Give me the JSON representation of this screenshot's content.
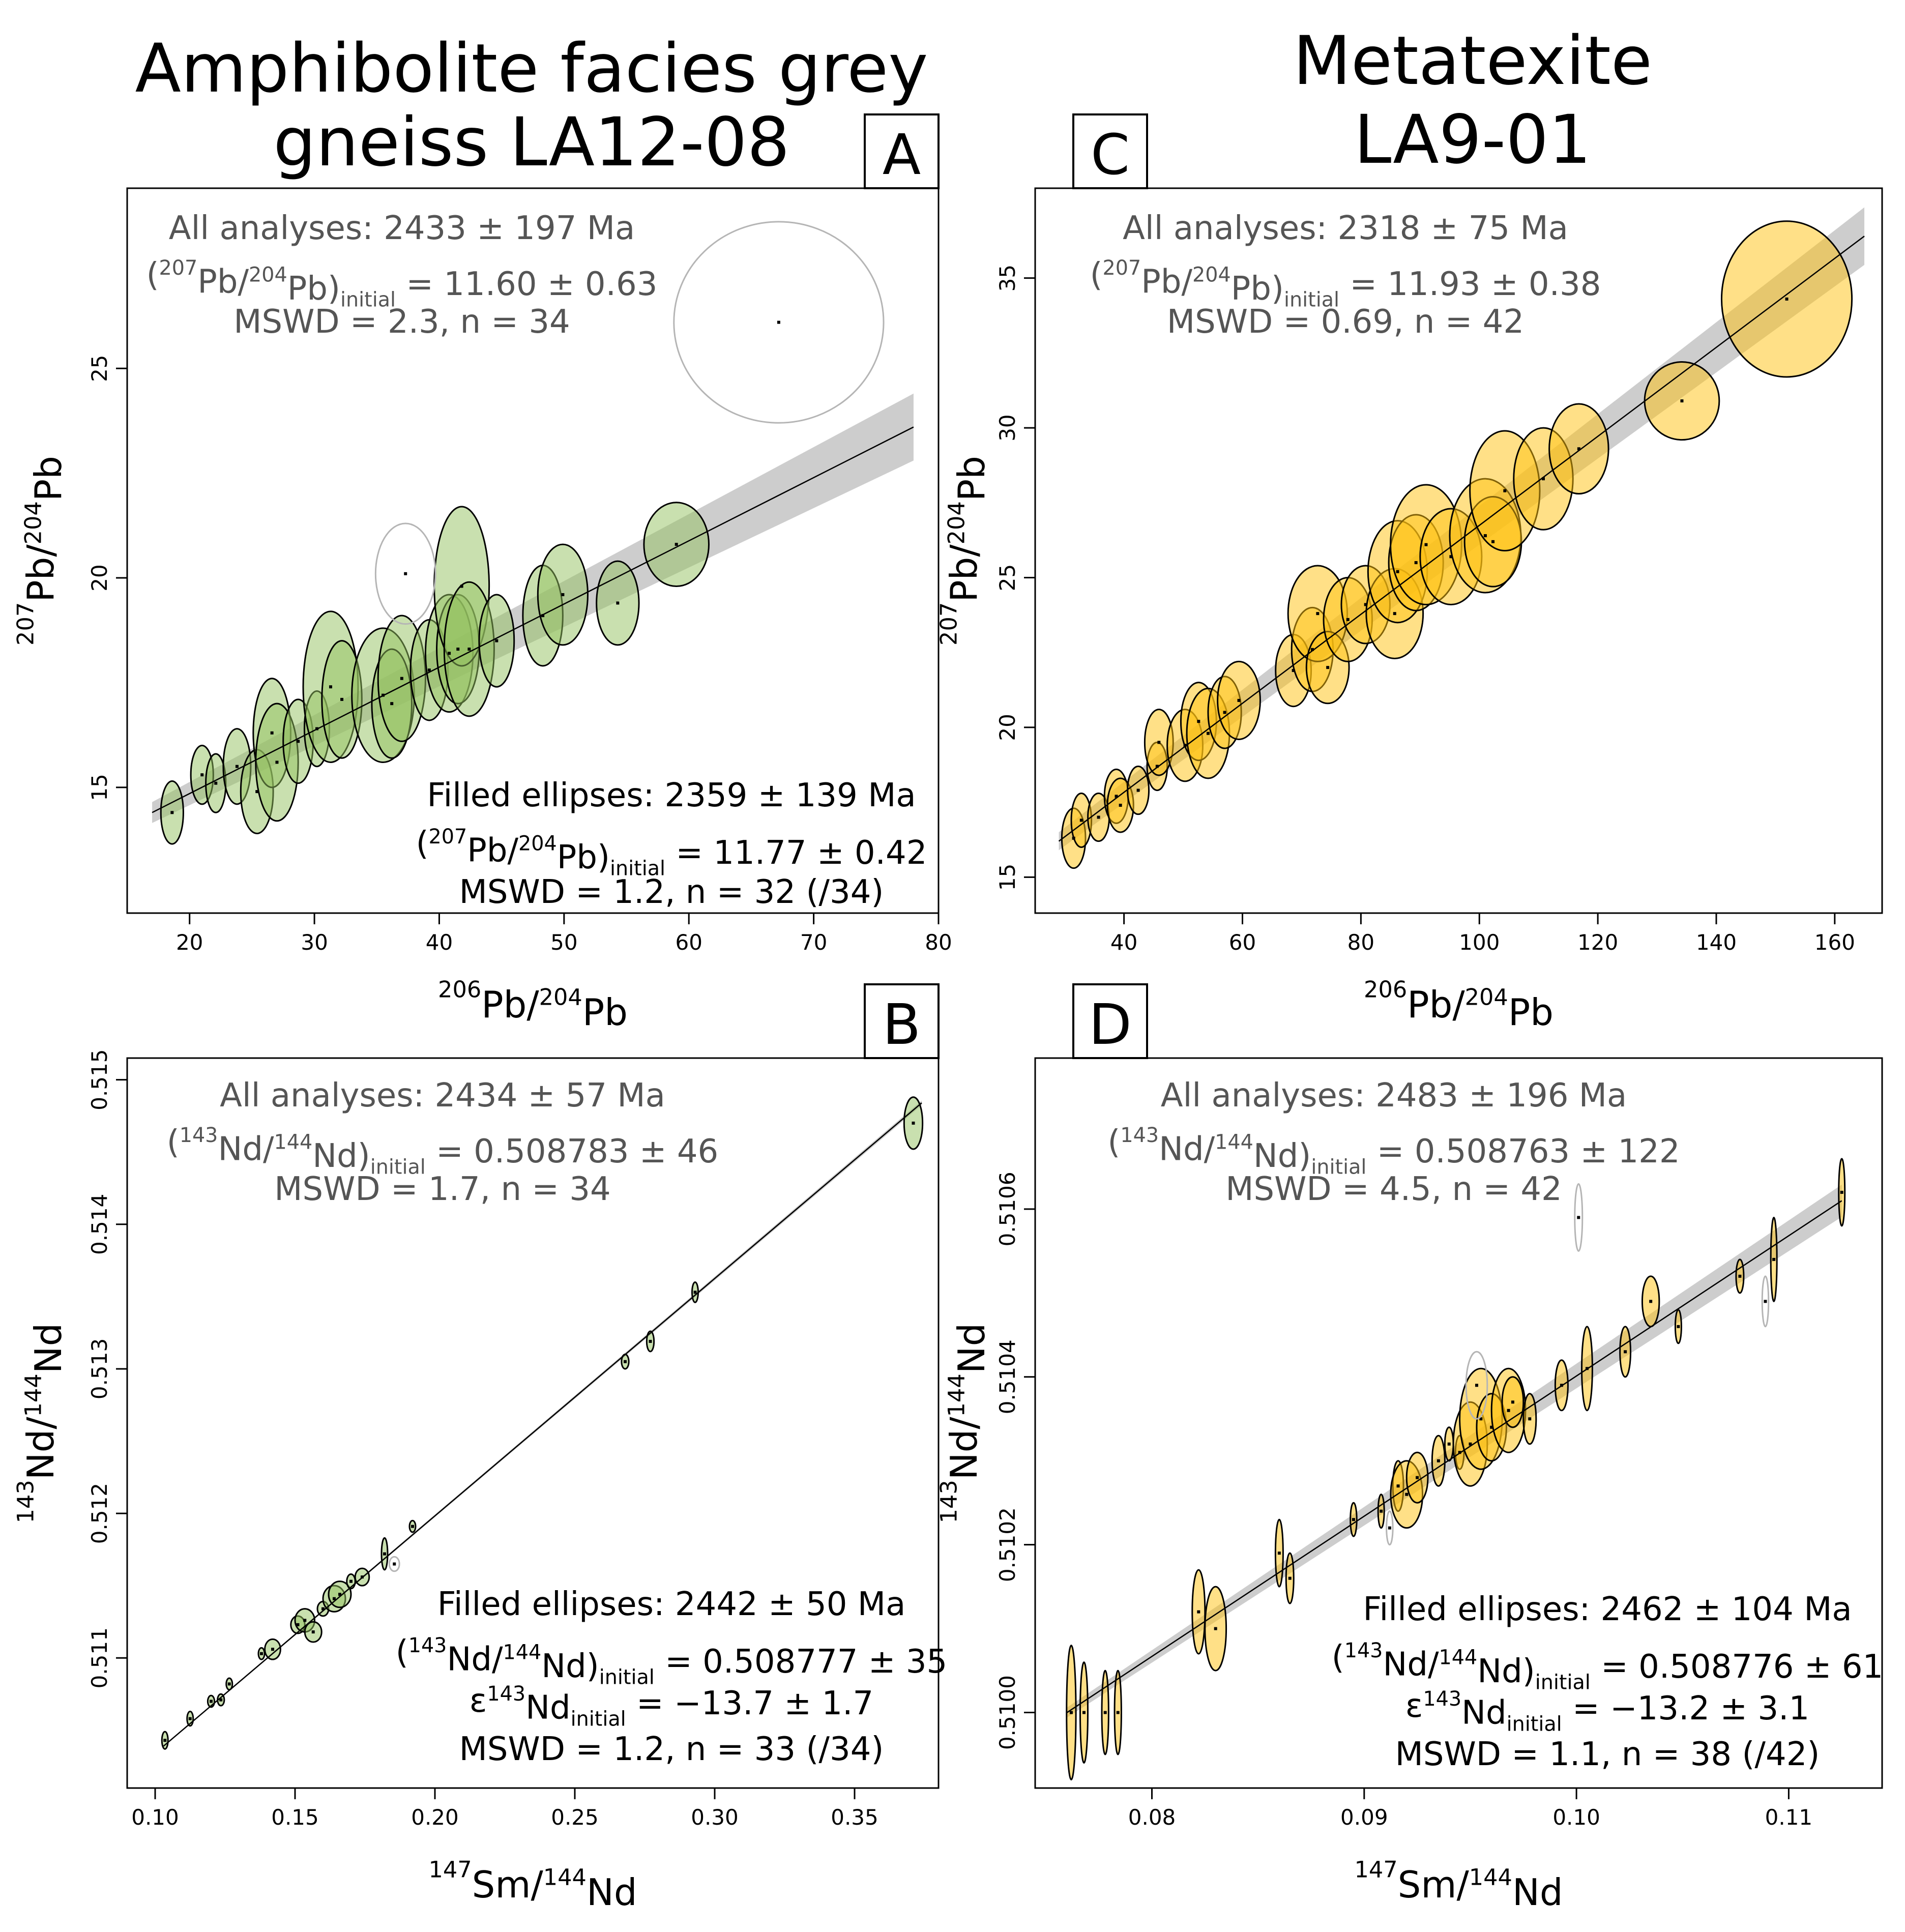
{
  "figure": {
    "titles": {
      "left": [
        "Amphibolite facies grey",
        "gneiss LA12-08"
      ],
      "right": [
        "Metatexite",
        "LA9-01"
      ]
    }
  },
  "chart_data": [
    {
      "id": "A",
      "type": "scatter",
      "letter": "A",
      "xlabel": "206Pb/204Pb",
      "ylabel": "207Pb/204Pb",
      "xlim": [
        15,
        80
      ],
      "ylim": [
        12.0,
        29.3
      ],
      "xticks": [
        20,
        30,
        40,
        50,
        60,
        70,
        80
      ],
      "yticks": [
        15,
        20,
        25
      ],
      "fill_color": "#93c15f",
      "fill_opacity": 0.5,
      "line": {
        "x0": 17,
        "y0": 14.4,
        "x1": 78,
        "y1": 23.6,
        "band": 0.5
      },
      "points": [
        {
          "x": 18.6,
          "y": 14.4,
          "rx": 0.9,
          "ry": 0.75
        },
        {
          "x": 21.0,
          "y": 15.3,
          "rx": 0.9,
          "ry": 0.7
        },
        {
          "x": 22.1,
          "y": 15.1,
          "rx": 0.8,
          "ry": 0.7
        },
        {
          "x": 23.8,
          "y": 15.5,
          "rx": 1.1,
          "ry": 0.9
        },
        {
          "x": 25.4,
          "y": 14.9,
          "rx": 1.3,
          "ry": 1.0
        },
        {
          "x": 26.6,
          "y": 16.3,
          "rx": 1.5,
          "ry": 1.3
        },
        {
          "x": 27.0,
          "y": 15.6,
          "rx": 1.7,
          "ry": 1.4
        },
        {
          "x": 28.7,
          "y": 16.1,
          "rx": 1.2,
          "ry": 1.0
        },
        {
          "x": 30.2,
          "y": 16.4,
          "rx": 1.0,
          "ry": 0.9
        },
        {
          "x": 31.3,
          "y": 17.4,
          "rx": 2.2,
          "ry": 1.8
        },
        {
          "x": 32.2,
          "y": 17.1,
          "rx": 1.6,
          "ry": 1.4
        },
        {
          "x": 35.5,
          "y": 17.2,
          "rx": 2.5,
          "ry": 1.6
        },
        {
          "x": 36.2,
          "y": 17.0,
          "rx": 1.6,
          "ry": 1.3
        },
        {
          "x": 37.0,
          "y": 17.6,
          "rx": 1.9,
          "ry": 1.5
        },
        {
          "x": 39.2,
          "y": 17.8,
          "rx": 1.5,
          "ry": 1.2
        },
        {
          "x": 40.8,
          "y": 18.2,
          "rx": 1.9,
          "ry": 1.4
        },
        {
          "x": 41.5,
          "y": 18.3,
          "rx": 1.7,
          "ry": 1.3
        },
        {
          "x": 41.8,
          "y": 19.8,
          "rx": 2.2,
          "ry": 1.9
        },
        {
          "x": 42.4,
          "y": 18.3,
          "rx": 2.0,
          "ry": 1.6
        },
        {
          "x": 44.6,
          "y": 18.5,
          "rx": 1.4,
          "ry": 1.1
        },
        {
          "x": 48.3,
          "y": 19.1,
          "rx": 1.6,
          "ry": 1.2
        },
        {
          "x": 49.9,
          "y": 19.6,
          "rx": 2.0,
          "ry": 1.2
        },
        {
          "x": 54.3,
          "y": 19.4,
          "rx": 1.7,
          "ry": 1.0
        },
        {
          "x": 59.0,
          "y": 20.8,
          "rx": 2.6,
          "ry": 1.0
        }
      ],
      "rejected": [
        {
          "x": 37.3,
          "y": 20.1,
          "rx": 2.4,
          "ry": 1.2
        },
        {
          "x": 67.2,
          "y": 26.1,
          "rx": 8.4,
          "ry": 2.4
        }
      ],
      "ann_all": [
        "All analyses: 2433 ± 197 Ma",
        "(207Pb/204Pb)initial = 11.60 ± 0.63",
        "MSWD = 2.3, n = 34"
      ],
      "ann_filled": [
        "Filled ellipses: 2359 ± 139 Ma",
        "(207Pb/204Pb)initial = 11.77 ± 0.42",
        "MSWD = 1.2, n = 32 (/34)"
      ]
    },
    {
      "id": "C",
      "type": "scatter",
      "letter": "C",
      "xlabel": "206Pb/204Pb",
      "ylabel": "207Pb/204Pb",
      "xlim": [
        25,
        168
      ],
      "ylim": [
        13.8,
        38.0
      ],
      "xticks": [
        40,
        60,
        80,
        100,
        120,
        140,
        160
      ],
      "yticks": [
        15,
        20,
        25,
        30,
        35
      ],
      "fill_color": "#ffc20f",
      "fill_opacity": 0.5,
      "line": {
        "x0": 29,
        "y0": 16.2,
        "x1": 165,
        "y1": 36.4,
        "band": 0.6
      },
      "points": [
        {
          "x": 31.5,
          "y": 16.3,
          "rx": 2.0,
          "ry": 1.0
        },
        {
          "x": 32.8,
          "y": 16.9,
          "rx": 1.7,
          "ry": 0.9
        },
        {
          "x": 35.7,
          "y": 17.0,
          "rx": 1.8,
          "ry": 0.8
        },
        {
          "x": 38.7,
          "y": 17.7,
          "rx": 2.0,
          "ry": 0.9
        },
        {
          "x": 39.4,
          "y": 17.4,
          "rx": 2.2,
          "ry": 0.9
        },
        {
          "x": 42.4,
          "y": 17.9,
          "rx": 1.8,
          "ry": 0.8
        },
        {
          "x": 45.6,
          "y": 18.7,
          "rx": 1.7,
          "ry": 0.8
        },
        {
          "x": 45.9,
          "y": 19.5,
          "rx": 2.4,
          "ry": 1.1
        },
        {
          "x": 50.3,
          "y": 19.4,
          "rx": 3.0,
          "ry": 1.2
        },
        {
          "x": 52.6,
          "y": 20.2,
          "rx": 3.0,
          "ry": 1.3
        },
        {
          "x": 54.2,
          "y": 19.8,
          "rx": 3.6,
          "ry": 1.5
        },
        {
          "x": 57.0,
          "y": 20.5,
          "rx": 2.8,
          "ry": 1.2
        },
        {
          "x": 59.4,
          "y": 20.9,
          "rx": 3.6,
          "ry": 1.3
        },
        {
          "x": 68.6,
          "y": 21.9,
          "rx": 3.0,
          "ry": 1.2
        },
        {
          "x": 71.8,
          "y": 22.6,
          "rx": 3.5,
          "ry": 1.4
        },
        {
          "x": 72.7,
          "y": 23.8,
          "rx": 5.0,
          "ry": 1.6
        },
        {
          "x": 74.4,
          "y": 22.0,
          "rx": 3.6,
          "ry": 1.2
        },
        {
          "x": 77.8,
          "y": 23.6,
          "rx": 4.1,
          "ry": 1.4
        },
        {
          "x": 80.8,
          "y": 24.1,
          "rx": 4.1,
          "ry": 1.3
        },
        {
          "x": 85.7,
          "y": 23.8,
          "rx": 4.8,
          "ry": 1.5
        },
        {
          "x": 86.2,
          "y": 25.2,
          "rx": 5.0,
          "ry": 1.7
        },
        {
          "x": 89.3,
          "y": 25.5,
          "rx": 4.6,
          "ry": 1.6
        },
        {
          "x": 91.0,
          "y": 26.1,
          "rx": 6.0,
          "ry": 2.0
        },
        {
          "x": 95.2,
          "y": 25.7,
          "rx": 5.2,
          "ry": 1.6
        },
        {
          "x": 101.0,
          "y": 26.4,
          "rx": 6.0,
          "ry": 1.9
        },
        {
          "x": 102.3,
          "y": 26.2,
          "rx": 4.8,
          "ry": 1.5
        },
        {
          "x": 104.3,
          "y": 27.9,
          "rx": 5.9,
          "ry": 2.0
        },
        {
          "x": 110.8,
          "y": 28.3,
          "rx": 5.0,
          "ry": 1.7
        },
        {
          "x": 116.8,
          "y": 29.3,
          "rx": 5.0,
          "ry": 1.5
        },
        {
          "x": 134.2,
          "y": 30.9,
          "rx": 6.3,
          "ry": 1.3
        },
        {
          "x": 151.9,
          "y": 34.3,
          "rx": 11.0,
          "ry": 2.6
        }
      ],
      "rejected": [],
      "ann_all": [
        "All analyses: 2318 ± 75 Ma",
        "(207Pb/204Pb)initial = 11.93 ± 0.38",
        "MSWD = 0.69, n = 42"
      ],
      "ann_filled": []
    },
    {
      "id": "B",
      "type": "scatter",
      "letter": "B",
      "xlabel": "147Sm/144Nd",
      "ylabel": "143Nd/144Nd",
      "xlim": [
        0.09,
        0.38
      ],
      "ylim": [
        0.5101,
        0.51515
      ],
      "xticks": [
        0.1,
        0.15,
        0.2,
        0.25,
        0.3,
        0.35
      ],
      "xtick_labels": [
        "0.10",
        "0.15",
        "0.20",
        "0.25",
        "0.30",
        "0.35"
      ],
      "yticks": [
        0.511,
        0.512,
        0.513,
        0.514,
        0.515
      ],
      "fill_color": "#93c15f",
      "fill_opacity": 0.5,
      "line": {
        "x0": 0.103,
        "y0": 0.51039,
        "x1": 0.374,
        "y1": 0.51484,
        "band": 1e-05
      },
      "points": [
        {
          "x": 0.1035,
          "y": 0.51043,
          "rx": 0.0008,
          "ry": 6e-05
        },
        {
          "x": 0.1125,
          "y": 0.51058,
          "rx": 0.0008,
          "ry": 5e-05
        },
        {
          "x": 0.12,
          "y": 0.5107,
          "rx": 0.0012,
          "ry": 4e-05
        },
        {
          "x": 0.1235,
          "y": 0.51071,
          "rx": 0.0012,
          "ry": 4e-05
        },
        {
          "x": 0.1265,
          "y": 0.51082,
          "rx": 0.0006,
          "ry": 4e-05
        },
        {
          "x": 0.138,
          "y": 0.51103,
          "rx": 0.0008,
          "ry": 4e-05
        },
        {
          "x": 0.142,
          "y": 0.51106,
          "rx": 0.0028,
          "ry": 7e-05
        },
        {
          "x": 0.151,
          "y": 0.51123,
          "rx": 0.0025,
          "ry": 6e-05
        },
        {
          "x": 0.1535,
          "y": 0.51126,
          "rx": 0.0035,
          "ry": 8e-05
        },
        {
          "x": 0.1565,
          "y": 0.51118,
          "rx": 0.003,
          "ry": 7e-05
        },
        {
          "x": 0.16,
          "y": 0.51134,
          "rx": 0.002,
          "ry": 5e-05
        },
        {
          "x": 0.164,
          "y": 0.51141,
          "rx": 0.004,
          "ry": 9e-05
        },
        {
          "x": 0.166,
          "y": 0.51144,
          "rx": 0.004,
          "ry": 9e-05
        },
        {
          "x": 0.17,
          "y": 0.51153,
          "rx": 0.0015,
          "ry": 5e-05
        },
        {
          "x": 0.174,
          "y": 0.51156,
          "rx": 0.0025,
          "ry": 6e-05
        },
        {
          "x": 0.182,
          "y": 0.51172,
          "rx": 0.0008,
          "ry": 0.00011
        },
        {
          "x": 0.192,
          "y": 0.51191,
          "rx": 0.0006,
          "ry": 4e-05
        },
        {
          "x": 0.268,
          "y": 0.51305,
          "rx": 0.0013,
          "ry": 5e-05
        },
        {
          "x": 0.277,
          "y": 0.51319,
          "rx": 0.0013,
          "ry": 7e-05
        },
        {
          "x": 0.293,
          "y": 0.51353,
          "rx": 0.0008,
          "ry": 7e-05
        },
        {
          "x": 0.371,
          "y": 0.5147,
          "rx": 0.0033,
          "ry": 0.00018
        }
      ],
      "rejected": [
        {
          "x": 0.1855,
          "y": 0.51165,
          "rx": 0.0018,
          "ry": 5e-05
        }
      ],
      "ann_all": [
        "All analyses: 2434 ± 57 Ma",
        "(143Nd/144Nd)initial = 0.508783 ± 46",
        "MSWD = 1.7, n = 34"
      ],
      "ann_filled": [
        "Filled ellipses: 2442 ± 50 Ma",
        "(143Nd/144Nd)initial = 0.508777 ± 35",
        "ε143Ndinitial = −13.7 ± 1.7",
        "MSWD = 1.2, n = 33 (/34)"
      ]
    },
    {
      "id": "D",
      "type": "scatter",
      "letter": "D",
      "xlabel": "147Sm/144Nd",
      "ylabel": "143Nd/144Nd",
      "xlim": [
        0.0745,
        0.1144
      ],
      "ylim": [
        0.50991,
        0.51078
      ],
      "xticks": [
        0.08,
        0.09,
        0.1,
        0.11
      ],
      "xtick_labels": [
        "0.08",
        "0.09",
        "0.10",
        "0.11"
      ],
      "yticks": [
        0.51,
        0.5102,
        0.5104,
        0.5106
      ],
      "ytick_labels": [
        "0.5100",
        "0.5102",
        "0.5104",
        "0.5106"
      ],
      "fill_color": "#ffc20f",
      "fill_opacity": 0.5,
      "line": {
        "x0": 0.076,
        "y0": 0.51,
        "x1": 0.1125,
        "y1": 0.51061,
        "band": 1.2e-05
      },
      "points": [
        {
          "x": 0.0762,
          "y": 0.51,
          "rx": 0.00022,
          "ry": 8e-05
        },
        {
          "x": 0.0768,
          "y": 0.51,
          "rx": 0.00018,
          "ry": 6e-05
        },
        {
          "x": 0.0778,
          "y": 0.51,
          "rx": 0.00016,
          "ry": 5e-05
        },
        {
          "x": 0.0784,
          "y": 0.51,
          "rx": 0.00016,
          "ry": 5e-05
        },
        {
          "x": 0.0822,
          "y": 0.51012,
          "rx": 0.0003,
          "ry": 5e-05
        },
        {
          "x": 0.083,
          "y": 0.5101,
          "rx": 0.0005,
          "ry": 5e-05
        },
        {
          "x": 0.086,
          "y": 0.51019,
          "rx": 0.00018,
          "ry": 4e-05
        },
        {
          "x": 0.0865,
          "y": 0.51016,
          "rx": 0.00018,
          "ry": 3e-05
        },
        {
          "x": 0.0895,
          "y": 0.51023,
          "rx": 0.00015,
          "ry": 2e-05
        },
        {
          "x": 0.0908,
          "y": 0.51024,
          "rx": 0.0001,
          "ry": 2e-05
        },
        {
          "x": 0.0916,
          "y": 0.51027,
          "rx": 0.00025,
          "ry": 3e-05
        },
        {
          "x": 0.092,
          "y": 0.51026,
          "rx": 0.00075,
          "ry": 4e-05
        },
        {
          "x": 0.0925,
          "y": 0.51028,
          "rx": 0.0005,
          "ry": 3e-05
        },
        {
          "x": 0.0935,
          "y": 0.5103,
          "rx": 0.0003,
          "ry": 3e-05
        },
        {
          "x": 0.094,
          "y": 0.51032,
          "rx": 0.0002,
          "ry": 2e-05
        },
        {
          "x": 0.0945,
          "y": 0.51031,
          "rx": 0.0002,
          "ry": 2e-05
        },
        {
          "x": 0.095,
          "y": 0.51032,
          "rx": 0.0008,
          "ry": 5e-05
        },
        {
          "x": 0.0955,
          "y": 0.51035,
          "rx": 0.001,
          "ry": 6e-05
        },
        {
          "x": 0.096,
          "y": 0.51034,
          "rx": 0.0007,
          "ry": 4e-05
        },
        {
          "x": 0.0968,
          "y": 0.51036,
          "rx": 0.0008,
          "ry": 5e-05
        },
        {
          "x": 0.097,
          "y": 0.51037,
          "rx": 0.0005,
          "ry": 3e-05
        },
        {
          "x": 0.0978,
          "y": 0.51035,
          "rx": 0.0003,
          "ry": 3e-05
        },
        {
          "x": 0.0993,
          "y": 0.51039,
          "rx": 0.0003,
          "ry": 3e-05
        },
        {
          "x": 0.1005,
          "y": 0.51041,
          "rx": 0.00025,
          "ry": 5e-05
        },
        {
          "x": 0.1023,
          "y": 0.51043,
          "rx": 0.00025,
          "ry": 3e-05
        },
        {
          "x": 0.1035,
          "y": 0.51049,
          "rx": 0.0004,
          "ry": 3e-05
        },
        {
          "x": 0.1048,
          "y": 0.51046,
          "rx": 0.00012,
          "ry": 2e-05
        },
        {
          "x": 0.1077,
          "y": 0.51052,
          "rx": 0.00018,
          "ry": 2e-05
        },
        {
          "x": 0.1093,
          "y": 0.51054,
          "rx": 0.00012,
          "ry": 5e-05
        },
        {
          "x": 0.1125,
          "y": 0.51062,
          "rx": 0.00014,
          "ry": 4e-05
        }
      ],
      "rejected": [
        {
          "x": 0.1001,
          "y": 0.51059,
          "rx": 0.00018,
          "ry": 4e-05
        },
        {
          "x": 0.0953,
          "y": 0.51039,
          "rx": 0.0005,
          "ry": 4e-05
        },
        {
          "x": 0.0912,
          "y": 0.51022,
          "rx": 0.00015,
          "ry": 2e-05
        },
        {
          "x": 0.1089,
          "y": 0.51049,
          "rx": 0.00015,
          "ry": 3e-05
        }
      ],
      "ann_all": [
        "All analyses: 2483 ± 196 Ma",
        "(143Nd/144Nd)initial = 0.508763 ± 122",
        "MSWD = 4.5, n = 42"
      ],
      "ann_filled": [
        "Filled ellipses: 2462 ± 104 Ma",
        "(143Nd/144Nd)initial = 0.508776 ± 61",
        "ε143Ndinitial = −13.2 ± 3.1",
        "MSWD = 1.1, n = 38 (/42)"
      ]
    }
  ]
}
